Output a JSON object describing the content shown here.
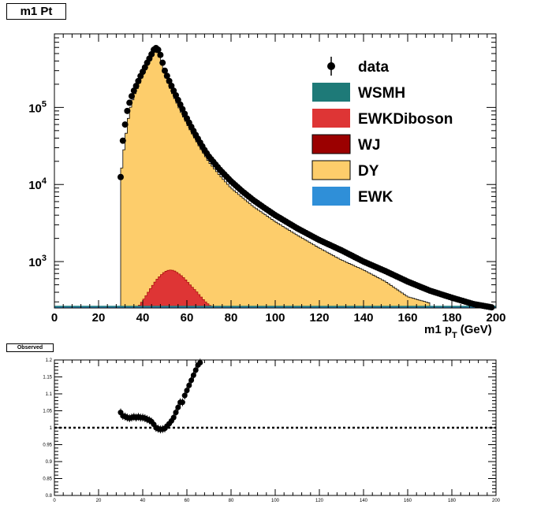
{
  "title": "m1 Pt",
  "ratio_title": "Observed",
  "chart_data": [
    {
      "type": "histogram",
      "name_shown": "m1 Pt",
      "xlabel": "m1 p_T (GeV)",
      "xlabel_main": "m1 p",
      "xlabel_sub": "T",
      "xlabel_unit": "(GeV)",
      "xlim": [
        0,
        200
      ],
      "ylim": [
        250,
        900000
      ],
      "log_y": true,
      "grid": false,
      "legend_placement": "top-right",
      "x_ticks": [
        "0",
        "20",
        "40",
        "60",
        "80",
        "100",
        "120",
        "140",
        "160",
        "180",
        "200"
      ],
      "y_ticks": [
        {
          "base": "10",
          "exp": "3",
          "value": 1000
        },
        {
          "base": "10",
          "exp": "4",
          "value": 10000
        },
        {
          "base": "10",
          "exp": "5",
          "value": 100000
        }
      ],
      "legend": [
        {
          "label": "data",
          "color": "#000000",
          "style": "marker"
        },
        {
          "label": "WSMH",
          "color": "#1e7a78",
          "style": "fill"
        },
        {
          "label": "EWKDiboson",
          "color": "#de3535",
          "style": "fill"
        },
        {
          "label": "WJ",
          "color": "#9b0000",
          "style": "fill"
        },
        {
          "label": "DY",
          "color": "#fdcd6b",
          "style": "fill"
        },
        {
          "label": "EWK",
          "color": "#2f8fd8",
          "style": "fill"
        }
      ],
      "series": [
        {
          "name": "DY",
          "x": [
            30,
            32,
            34,
            36,
            38,
            40,
            42,
            44,
            46,
            48,
            50,
            54,
            58,
            62,
            66,
            70,
            75,
            80,
            90,
            100,
            110,
            120,
            130,
            140,
            150,
            160,
            170
          ],
          "values": [
            12500,
            37000,
            90000,
            140000,
            190000,
            260000,
            370000,
            500000,
            550000,
            420000,
            260000,
            140000,
            80000,
            48000,
            30000,
            19500,
            13000,
            9000,
            5200,
            3300,
            2200,
            1500,
            1050,
            780,
            550,
            350,
            290
          ]
        },
        {
          "name": "EWKDiboson",
          "x": [
            38,
            40,
            42,
            44,
            46,
            48,
            50,
            52,
            54,
            56,
            58,
            60,
            62,
            64,
            66,
            68,
            70,
            72,
            74
          ],
          "values": [
            260,
            310,
            380,
            470,
            570,
            660,
            740,
            780,
            770,
            710,
            640,
            560,
            480,
            420,
            360,
            310,
            275,
            255,
            250
          ]
        },
        {
          "name": "data",
          "x": [
            30,
            31,
            32,
            33,
            34,
            35,
            36,
            37,
            38,
            39,
            40,
            41,
            42,
            43,
            44,
            45,
            46,
            47,
            48,
            49,
            50,
            52,
            54,
            56,
            58,
            60,
            62,
            64,
            66,
            68,
            70,
            75,
            80,
            85,
            90,
            95,
            100,
            110,
            120,
            130,
            140,
            150,
            160,
            170,
            180,
            190,
            198
          ],
          "values": [
            12500,
            37000,
            60000,
            90000,
            115000,
            140000,
            165000,
            190000,
            220000,
            255000,
            290000,
            330000,
            380000,
            430000,
            490000,
            560000,
            590000,
            560000,
            480000,
            380000,
            300000,
            220000,
            165000,
            125000,
            95000,
            72000,
            56000,
            44000,
            35000,
            28000,
            23000,
            15500,
            11000,
            8200,
            6300,
            5000,
            4000,
            2700,
            1900,
            1400,
            1000,
            750,
            550,
            420,
            340,
            280,
            255
          ]
        }
      ]
    },
    {
      "type": "scatter",
      "title": "Observed",
      "xlim": [
        0,
        200
      ],
      "ylim": [
        0.8,
        1.2
      ],
      "x_ticks": [
        "0",
        "20",
        "40",
        "60",
        "80",
        "100",
        "120",
        "140",
        "160",
        "180",
        "200"
      ],
      "y_ticks": [
        "0.8",
        "0.85",
        "0.9",
        "0.95",
        "1",
        "1.05",
        "1.1",
        "1.15",
        "1.2"
      ],
      "reference_line": 1,
      "x": [
        30,
        31,
        32,
        33,
        34,
        35,
        36,
        37,
        38,
        39,
        40,
        41,
        42,
        43,
        44,
        45,
        46,
        47,
        48,
        49,
        50,
        51,
        52,
        53,
        54,
        55,
        56,
        57,
        58,
        59,
        60,
        61,
        62,
        63,
        64,
        65,
        66
      ],
      "y": [
        1.045,
        1.035,
        1.033,
        1.03,
        1.028,
        1.03,
        1.032,
        1.03,
        1.032,
        1.03,
        1.03,
        1.028,
        1.025,
        1.022,
        1.018,
        1.01,
        1.0,
        0.997,
        0.995,
        0.996,
        0.998,
        1.005,
        1.012,
        1.02,
        1.03,
        1.045,
        1.06,
        1.075,
        1.075,
        1.095,
        1.11,
        1.125,
        1.14,
        1.155,
        1.17,
        1.185,
        1.192
      ]
    }
  ]
}
